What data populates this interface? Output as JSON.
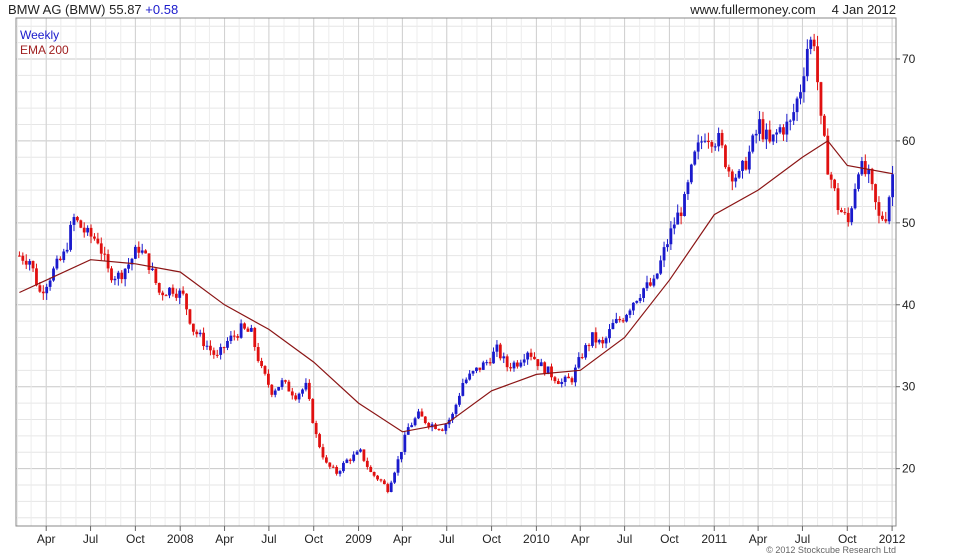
{
  "header": {
    "title": "BMW AG (BMW)",
    "last": "55.87",
    "change": "+0.58",
    "site": "www.fullermoney.com",
    "date": "4 Jan 2012"
  },
  "legend": {
    "weekly": "Weekly",
    "ema": "EMA 200"
  },
  "copyright": "© 2012 Stockcube Research Ltd",
  "colors": {
    "up": "#1a1acc",
    "down": "#e01010",
    "ema": "#8b1515",
    "grid": "#d8d8d8"
  },
  "chart_data": {
    "type": "candlestick",
    "title": "BMW AG (BMW)",
    "frequency": "Weekly",
    "ylim": [
      13,
      75
    ],
    "y_ticks": [
      20,
      30,
      40,
      50,
      60,
      70
    ],
    "x_range": [
      "2007-01-29",
      "2012-01-09"
    ],
    "x_ticks": [
      {
        "label": "Apr",
        "date": "2007-04-01"
      },
      {
        "label": "Jul",
        "date": "2007-07-01"
      },
      {
        "label": "Oct",
        "date": "2007-10-01"
      },
      {
        "label": "2008",
        "date": "2008-01-01"
      },
      {
        "label": "Apr",
        "date": "2008-04-01"
      },
      {
        "label": "Jul",
        "date": "2008-07-01"
      },
      {
        "label": "Oct",
        "date": "2008-10-01"
      },
      {
        "label": "2009",
        "date": "2009-01-01"
      },
      {
        "label": "Apr",
        "date": "2009-04-01"
      },
      {
        "label": "Jul",
        "date": "2009-07-01"
      },
      {
        "label": "Oct",
        "date": "2009-10-01"
      },
      {
        "label": "2010",
        "date": "2010-01-01"
      },
      {
        "label": "Apr",
        "date": "2010-04-01"
      },
      {
        "label": "Jul",
        "date": "2010-07-01"
      },
      {
        "label": "Oct",
        "date": "2010-10-01"
      },
      {
        "label": "2011",
        "date": "2011-01-01"
      },
      {
        "label": "Apr",
        "date": "2011-04-01"
      },
      {
        "label": "Jul",
        "date": "2011-07-01"
      },
      {
        "label": "Oct",
        "date": "2011-10-01"
      },
      {
        "label": "2012",
        "date": "2012-01-01"
      }
    ],
    "price_path": [
      [
        "2007-02-05",
        46.0
      ],
      [
        "2007-02-26",
        45.5
      ],
      [
        "2007-03-19",
        41.5
      ],
      [
        "2007-04-09",
        43.5
      ],
      [
        "2007-05-07",
        46.0
      ],
      [
        "2007-05-28",
        50.5
      ],
      [
        "2007-06-25",
        48.5
      ],
      [
        "2007-07-16",
        48.0
      ],
      [
        "2007-08-06",
        44.0
      ],
      [
        "2007-08-27",
        43.5
      ],
      [
        "2007-09-17",
        45.0
      ],
      [
        "2007-10-08",
        47.0
      ],
      [
        "2007-10-29",
        45.0
      ],
      [
        "2007-11-19",
        41.5
      ],
      [
        "2007-12-17",
        42.0
      ],
      [
        "2008-01-07",
        41.0
      ],
      [
        "2008-01-28",
        37.0
      ],
      [
        "2008-02-18",
        35.5
      ],
      [
        "2008-03-17",
        33.5
      ],
      [
        "2008-04-07",
        35.5
      ],
      [
        "2008-05-05",
        37.0
      ],
      [
        "2008-05-26",
        36.5
      ],
      [
        "2008-06-16",
        32.0
      ],
      [
        "2008-07-07",
        29.5
      ],
      [
        "2008-07-28",
        30.5
      ],
      [
        "2008-08-25",
        29.0
      ],
      [
        "2008-09-15",
        30.0
      ],
      [
        "2008-10-06",
        24.0
      ],
      [
        "2008-10-27",
        20.5
      ],
      [
        "2008-11-17",
        19.5
      ],
      [
        "2008-12-08",
        21.0
      ],
      [
        "2009-01-05",
        22.0
      ],
      [
        "2009-01-26",
        19.5
      ],
      [
        "2009-02-16",
        18.5
      ],
      [
        "2009-03-02",
        17.5
      ],
      [
        "2009-03-23",
        21.0
      ],
      [
        "2009-04-13",
        25.0
      ],
      [
        "2009-05-04",
        26.5
      ],
      [
        "2009-05-25",
        25.5
      ],
      [
        "2009-06-22",
        25.0
      ],
      [
        "2009-07-13",
        26.5
      ],
      [
        "2009-08-03",
        30.5
      ],
      [
        "2009-08-31",
        32.0
      ],
      [
        "2009-09-21",
        33.0
      ],
      [
        "2009-10-12",
        34.5
      ],
      [
        "2009-11-02",
        32.5
      ],
      [
        "2009-11-23",
        33.0
      ],
      [
        "2009-12-14",
        34.5
      ],
      [
        "2010-01-11",
        32.5
      ],
      [
        "2010-02-01",
        31.5
      ],
      [
        "2010-02-22",
        30.5
      ],
      [
        "2010-03-15",
        31.0
      ],
      [
        "2010-04-05",
        34.0
      ],
      [
        "2010-04-26",
        36.0
      ],
      [
        "2010-05-17",
        35.0
      ],
      [
        "2010-06-07",
        37.5
      ],
      [
        "2010-06-28",
        38.5
      ],
      [
        "2010-07-19",
        40.5
      ],
      [
        "2010-08-09",
        42.0
      ],
      [
        "2010-08-30",
        42.5
      ],
      [
        "2010-09-20",
        46.5
      ],
      [
        "2010-10-11",
        50.0
      ],
      [
        "2010-11-01",
        52.5
      ],
      [
        "2010-11-22",
        58.0
      ],
      [
        "2010-12-13",
        61.0
      ],
      [
        "2011-01-10",
        60.0
      ],
      [
        "2011-01-31",
        56.5
      ],
      [
        "2011-02-21",
        55.5
      ],
      [
        "2011-03-14",
        58.5
      ],
      [
        "2011-04-04",
        62.0
      ],
      [
        "2011-04-25",
        59.5
      ],
      [
        "2011-05-16",
        61.5
      ],
      [
        "2011-06-06",
        62.0
      ],
      [
        "2011-06-27",
        66.5
      ],
      [
        "2011-07-11",
        71.5
      ],
      [
        "2011-07-25",
        72.5
      ],
      [
        "2011-08-08",
        62.0
      ],
      [
        "2011-08-22",
        57.0
      ],
      [
        "2011-09-12",
        52.0
      ],
      [
        "2011-10-03",
        50.0
      ],
      [
        "2011-10-24",
        57.0
      ],
      [
        "2011-11-14",
        55.5
      ],
      [
        "2011-12-05",
        50.5
      ],
      [
        "2011-12-19",
        51.0
      ],
      [
        "2012-01-02",
        55.9
      ]
    ],
    "ema200": [
      [
        "2007-02-05",
        41.5
      ],
      [
        "2007-04-01",
        43.0
      ],
      [
        "2007-07-01",
        45.5
      ],
      [
        "2007-10-01",
        45.0
      ],
      [
        "2008-01-01",
        44.0
      ],
      [
        "2008-04-01",
        40.0
      ],
      [
        "2008-07-01",
        37.0
      ],
      [
        "2008-10-01",
        33.0
      ],
      [
        "2009-01-01",
        28.0
      ],
      [
        "2009-04-01",
        24.5
      ],
      [
        "2009-07-01",
        25.5
      ],
      [
        "2009-10-01",
        29.5
      ],
      [
        "2010-01-01",
        31.5
      ],
      [
        "2010-04-01",
        32.0
      ],
      [
        "2010-07-01",
        36.0
      ],
      [
        "2010-10-01",
        43.0
      ],
      [
        "2011-01-01",
        51.0
      ],
      [
        "2011-04-01",
        54.0
      ],
      [
        "2011-07-01",
        58.0
      ],
      [
        "2011-08-22",
        60.0
      ],
      [
        "2011-10-01",
        57.0
      ],
      [
        "2012-01-02",
        56.0
      ]
    ]
  }
}
